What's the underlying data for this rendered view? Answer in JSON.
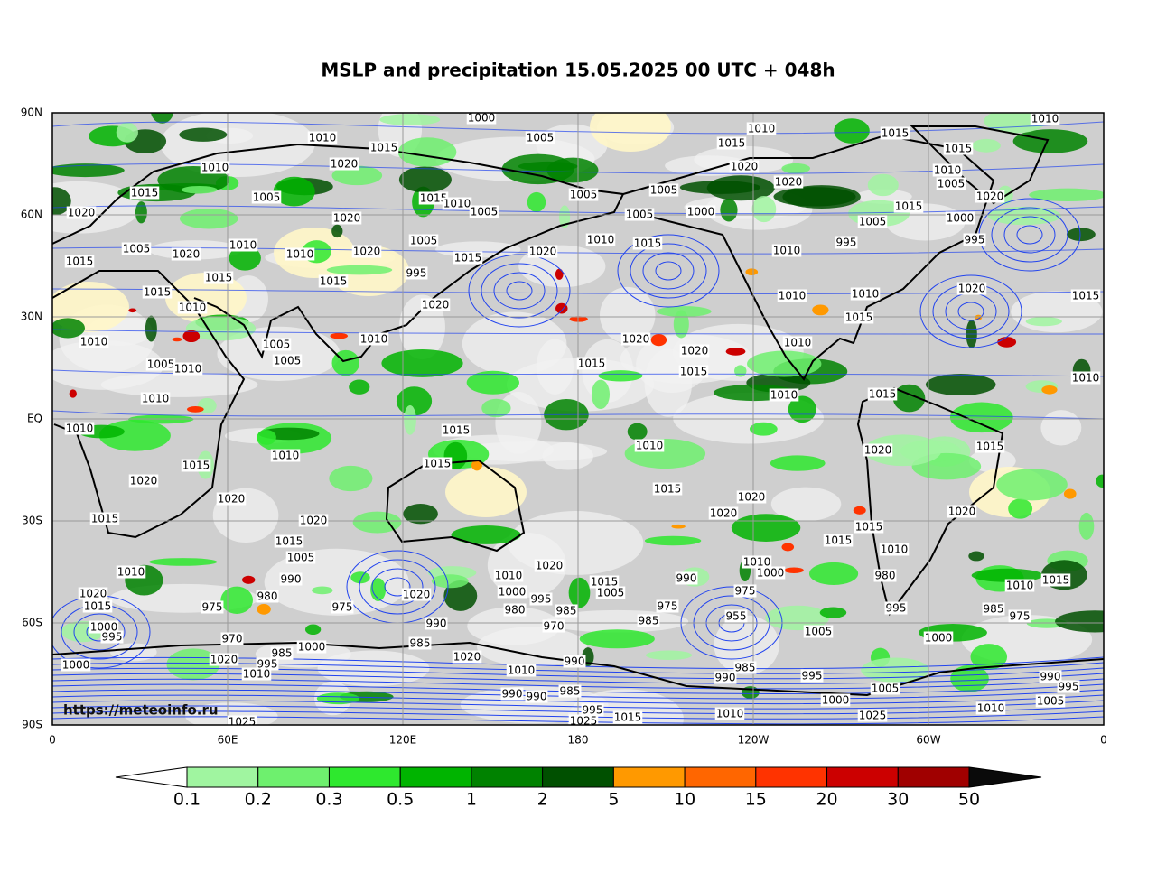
{
  "title": "MSLP and precipitation 15.05.2025 00 UTC + 048h",
  "map": {
    "lat_labels": [
      "90N",
      "60N",
      "30N",
      "EQ",
      "30S",
      "60S",
      "90S"
    ],
    "lon_labels": [
      "0",
      "60E",
      "120E",
      "180",
      "120W",
      "60W",
      "0"
    ],
    "source": "https://meteoinfo.ru",
    "isobar_labels": [
      1000,
      1005,
      1010,
      1010,
      1010,
      1015,
      1015,
      1015,
      1015,
      1010,
      1020,
      1020,
      1020,
      1005,
      1015,
      1010,
      1005,
      1005,
      1005,
      1000,
      1005,
      1020,
      1015,
      1020,
      1010,
      1005,
      1020,
      1015,
      1005,
      1000,
      995,
      995,
      1005,
      1020,
      1010,
      1010,
      1020,
      1005,
      1015,
      1020,
      1010,
      1015,
      1010,
      1015,
      995,
      1015,
      1015,
      1015,
      1010,
      1010,
      1020,
      1015,
      1010,
      1020,
      1015,
      1010,
      1005,
      1010,
      1020,
      1020,
      1010,
      1005,
      1010,
      1005,
      1015,
      1015,
      1010,
      1010,
      1010,
      1015,
      1010,
      1015,
      1010,
      1010,
      1015,
      1020,
      1015,
      1015,
      1020,
      1015,
      1020,
      1020,
      1020,
      1020,
      1015,
      1020,
      1015,
      1015,
      1015,
      1005,
      1010,
      1010,
      1010,
      1020,
      1010,
      1000,
      990,
      990,
      1015,
      980,
      1010,
      1015,
      1020,
      1000,
      1020,
      980,
      995,
      1005,
      975,
      1015,
      975,
      975,
      975,
      985,
      980,
      985,
      975,
      970,
      990,
      985,
      955,
      1005,
      995,
      1000,
      995,
      970,
      985,
      1000,
      1000,
      985,
      1020,
      1020,
      990,
      995,
      1000,
      1010,
      1010,
      985,
      990,
      995,
      990,
      995,
      990,
      990,
      985,
      1005,
      1000,
      1005,
      995,
      1015,
      1010,
      1010,
      1025,
      1025,
      1025
    ]
  },
  "colorbar": {
    "levels": [
      0.1,
      0.2,
      0.3,
      0.5,
      1,
      2,
      5,
      10,
      15,
      20,
      30,
      50
    ],
    "under_color": "#ffffff",
    "colors": [
      "#a0f5a0",
      "#6ef06e",
      "#2ee82e",
      "#00b400",
      "#008200",
      "#005000",
      "#ff9900",
      "#ff6600",
      "#ff3300",
      "#cc0000",
      "#a00000"
    ],
    "over_color": "#0a0a0a"
  }
}
